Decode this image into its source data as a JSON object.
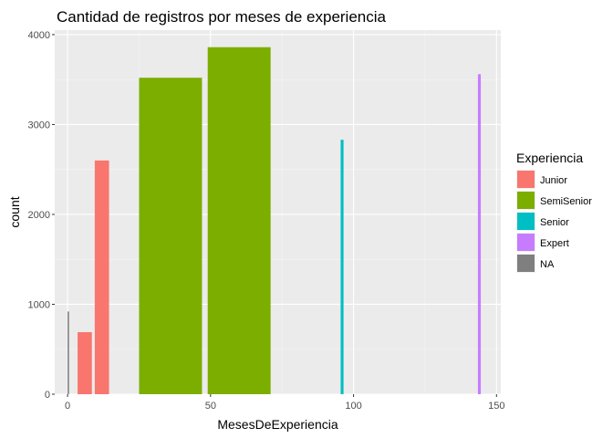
{
  "chart_data": {
    "type": "bar",
    "title": "Cantidad de registros por meses de experiencia",
    "xlabel": "MesesDeExperiencia",
    "ylabel": "count",
    "xlim": [
      -4.5,
      151.5
    ],
    "ylim": [
      0,
      4050
    ],
    "x_ticks": [
      0,
      50,
      100,
      150
    ],
    "y_ticks": [
      0,
      1000,
      2000,
      3000,
      4000
    ],
    "x_tick_labels": [
      "0",
      "50",
      "100",
      "150"
    ],
    "y_tick_labels": [
      "0",
      "1000",
      "2000",
      "3000",
      "4000"
    ],
    "grid": true,
    "legend": {
      "title": "Experiencia",
      "position": "right",
      "entries": [
        {
          "label": "Junior",
          "color": "#F8766D"
        },
        {
          "label": "SemiSenior",
          "color": "#7CAE00"
        },
        {
          "label": "Senior",
          "color": "#00BFC4"
        },
        {
          "label": "Expert",
          "color": "#C77CFF"
        },
        {
          "label": "NA",
          "color": "#7F7F7F"
        }
      ]
    },
    "bars": [
      {
        "group": "NA",
        "x_start": 0,
        "x_end": 0.5,
        "count": 920
      },
      {
        "group": "Junior",
        "x_start": 3.5,
        "x_end": 8.5,
        "count": 690
      },
      {
        "group": "Junior",
        "x_start": 9.5,
        "x_end": 14.5,
        "count": 2600
      },
      {
        "group": "SemiSenior",
        "x_start": 25,
        "x_end": 47,
        "count": 3520
      },
      {
        "group": "SemiSenior",
        "x_start": 49,
        "x_end": 71,
        "count": 3860
      },
      {
        "group": "Senior",
        "x_start": 95.5,
        "x_end": 96.5,
        "count": 2830
      },
      {
        "group": "Expert",
        "x_start": 143.5,
        "x_end": 144.5,
        "count": 3560
      }
    ]
  }
}
